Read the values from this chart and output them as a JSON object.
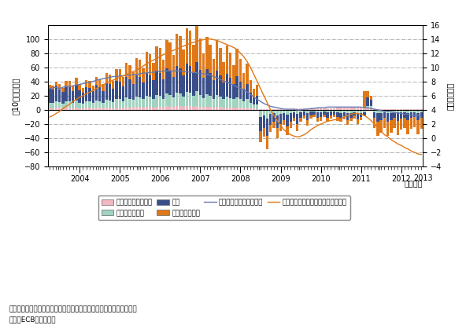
{
  "ylabel_left": "（10億ユーロ）",
  "ylabel_right": "（年率、％）",
  "xlabel_right": "（年月）",
  "ylim_left": [
    -80,
    120
  ],
  "ylim_right": [
    -4,
    16
  ],
  "yticks_left": [
    -80,
    -60,
    -40,
    -20,
    0,
    20,
    40,
    60,
    80,
    100
  ],
  "yticks_right": [
    -4,
    -2,
    0,
    2,
    4,
    6,
    8,
    10,
    12,
    14,
    16
  ],
  "note1": "備考：棒グラフは純取引額。折れ線は残高の前年比。季節調整済み。",
  "note2": "資料：ECBから作成。",
  "bar_colors": {
    "insurance": "#f2b8c0",
    "other_fin": "#a0d4c0",
    "household": "#3a4f8a",
    "corporate": "#e07818"
  },
  "line_colors": {
    "household_rate": "#6878b0",
    "corporate_rate": "#e07818"
  },
  "legend_labels": {
    "insurance": "保険会社・年金基金",
    "other_fin": "その他金融機関",
    "household": "家計",
    "corporate": "企業（非金融）",
    "household_rate": "家計（残高年率）：右軸",
    "corporate_rate": "企業（非金融）（残高年率）：右軸"
  },
  "insurance": [
    2,
    2,
    3,
    3,
    2,
    3,
    3,
    2,
    3,
    2,
    2,
    3,
    3,
    2,
    3,
    3,
    2,
    3,
    3,
    2,
    3,
    3,
    2,
    4,
    3,
    3,
    4,
    4,
    3,
    4,
    4,
    3,
    4,
    4,
    3,
    5,
    4,
    4,
    5,
    5,
    4,
    5,
    5,
    4,
    5,
    4,
    3,
    4,
    4,
    3,
    4,
    4,
    3,
    3,
    3,
    3,
    3,
    3,
    2,
    3,
    2,
    2,
    1,
    1,
    1,
    1,
    1,
    1,
    1,
    1,
    1,
    1,
    1,
    2,
    2,
    2,
    2,
    2,
    2,
    2,
    2,
    2,
    2,
    2,
    2,
    2,
    3,
    3,
    3,
    3,
    3,
    3,
    3,
    3,
    3,
    2,
    2,
    1,
    1,
    1,
    1,
    1,
    1,
    1,
    1,
    1,
    1,
    1,
    1,
    1,
    1,
    1
  ],
  "other_fin": [
    8,
    8,
    9,
    8,
    7,
    9,
    9,
    8,
    10,
    8,
    7,
    9,
    9,
    8,
    10,
    9,
    8,
    11,
    10,
    9,
    12,
    12,
    10,
    14,
    13,
    11,
    15,
    14,
    12,
    16,
    15,
    13,
    17,
    16,
    13,
    18,
    17,
    14,
    19,
    18,
    15,
    20,
    19,
    16,
    21,
    17,
    14,
    18,
    16,
    13,
    17,
    15,
    12,
    16,
    14,
    12,
    15,
    13,
    10,
    12,
    8,
    6,
    7,
    -10,
    -8,
    -12,
    -6,
    -5,
    -8,
    -6,
    -4,
    -7,
    -5,
    -3,
    -6,
    -3,
    -2,
    -4,
    -2,
    -2,
    -3,
    -3,
    -2,
    -3,
    -2,
    -2,
    -3,
    -4,
    -3,
    -5,
    -4,
    -3,
    -5,
    -4,
    -3,
    4,
    3,
    -3,
    -5,
    -4,
    -3,
    -5,
    -4,
    -3,
    -4,
    -3,
    -3,
    -4,
    -3,
    -3,
    -4,
    -3
  ],
  "household": [
    20,
    19,
    22,
    18,
    16,
    21,
    20,
    17,
    22,
    18,
    15,
    20,
    19,
    16,
    22,
    20,
    17,
    24,
    23,
    19,
    26,
    25,
    21,
    28,
    27,
    23,
    30,
    28,
    24,
    32,
    30,
    26,
    34,
    32,
    27,
    36,
    34,
    28,
    38,
    36,
    30,
    40,
    38,
    32,
    42,
    35,
    28,
    36,
    32,
    26,
    34,
    30,
    24,
    32,
    28,
    22,
    30,
    24,
    18,
    22,
    14,
    10,
    12,
    -20,
    -18,
    -25,
    -15,
    -12,
    -18,
    -14,
    -10,
    -16,
    -12,
    -8,
    -14,
    -8,
    -6,
    -10,
    -6,
    -5,
    -8,
    -7,
    -5,
    -8,
    -6,
    -5,
    -7,
    -8,
    -6,
    -9,
    -7,
    -5,
    -8,
    -6,
    -5,
    12,
    9,
    -8,
    -12,
    -10,
    -8,
    -12,
    -10,
    -8,
    -11,
    -9,
    -8,
    -10,
    -8,
    -7,
    -10,
    -8
  ],
  "corporate": [
    5,
    5,
    6,
    7,
    6,
    8,
    9,
    7,
    10,
    9,
    7,
    10,
    10,
    8,
    12,
    11,
    9,
    14,
    14,
    11,
    17,
    17,
    13,
    20,
    20,
    16,
    24,
    25,
    20,
    30,
    30,
    24,
    35,
    35,
    28,
    40,
    40,
    32,
    45,
    45,
    36,
    50,
    50,
    40,
    55,
    45,
    35,
    45,
    40,
    30,
    42,
    38,
    28,
    40,
    36,
    26,
    38,
    32,
    22,
    28,
    18,
    12,
    15,
    -15,
    -12,
    -18,
    -10,
    -8,
    -14,
    -10,
    -7,
    -12,
    -9,
    -5,
    -10,
    -6,
    -4,
    -8,
    -4,
    -3,
    -6,
    -5,
    -3,
    -6,
    -4,
    -3,
    -5,
    -5,
    -4,
    -7,
    -5,
    -4,
    -7,
    -4,
    24,
    8,
    6,
    -15,
    -20,
    -18,
    -14,
    -20,
    -18,
    -14,
    -20,
    -16,
    -14,
    -20,
    -16,
    -14,
    -20,
    -16
  ],
  "household_rate": [
    7.0,
    7.1,
    7.2,
    7.0,
    7.2,
    7.3,
    7.3,
    7.4,
    7.5,
    7.6,
    7.7,
    7.8,
    7.9,
    8.0,
    8.2,
    8.3,
    8.4,
    8.5,
    8.6,
    8.7,
    8.7,
    8.8,
    8.8,
    8.9,
    8.9,
    9.0,
    9.0,
    9.1,
    9.2,
    9.2,
    9.3,
    9.3,
    9.4,
    9.4,
    9.5,
    9.5,
    9.5,
    9.5,
    9.5,
    9.5,
    9.4,
    9.4,
    9.3,
    9.3,
    9.2,
    9.1,
    9.1,
    9.0,
    8.9,
    8.7,
    8.5,
    8.3,
    8.1,
    7.9,
    7.7,
    7.5,
    7.2,
    7.0,
    6.8,
    6.5,
    6.2,
    5.8,
    5.5,
    5.2,
    4.9,
    4.7,
    4.5,
    4.4,
    4.3,
    4.2,
    4.1,
    4.1,
    4.1,
    4.1,
    4.0,
    4.0,
    4.1,
    4.1,
    4.2,
    4.2,
    4.3,
    4.3,
    4.3,
    4.4,
    4.4,
    4.4,
    4.4,
    4.4,
    4.4,
    4.4,
    4.4,
    4.4,
    4.4,
    4.4,
    4.3,
    4.3,
    4.2,
    4.1,
    4.0,
    3.9,
    3.8,
    3.8,
    3.7,
    3.6,
    3.6,
    3.5,
    3.4,
    3.4,
    3.3,
    3.2,
    3.2,
    3.1
  ],
  "corporate_rate": [
    3.0,
    3.2,
    3.5,
    3.8,
    4.2,
    4.5,
    4.8,
    5.2,
    5.5,
    5.8,
    6.0,
    6.3,
    6.5,
    6.7,
    7.0,
    7.3,
    7.5,
    7.8,
    8.0,
    8.2,
    8.4,
    8.6,
    8.8,
    9.0,
    9.2,
    9.4,
    9.6,
    9.9,
    10.2,
    10.5,
    10.8,
    11.0,
    11.3,
    11.5,
    11.8,
    12.0,
    12.2,
    12.4,
    12.6,
    12.8,
    13.0,
    13.2,
    13.4,
    13.5,
    13.7,
    13.8,
    13.9,
    14.0,
    14.0,
    13.9,
    13.8,
    13.6,
    13.4,
    13.2,
    13.0,
    12.8,
    12.5,
    12.0,
    11.5,
    10.8,
    10.0,
    9.0,
    8.0,
    7.0,
    6.0,
    5.0,
    4.0,
    3.2,
    2.5,
    1.8,
    1.2,
    0.8,
    0.5,
    0.3,
    0.2,
    0.3,
    0.5,
    0.8,
    1.2,
    1.5,
    1.8,
    2.0,
    2.2,
    2.4,
    2.5,
    2.6,
    2.7,
    2.8,
    3.0,
    3.2,
    3.4,
    3.5,
    3.5,
    3.4,
    3.2,
    2.9,
    2.5,
    2.0,
    1.5,
    1.0,
    0.5,
    0.2,
    -0.2,
    -0.5,
    -0.8,
    -1.0,
    -1.3,
    -1.5,
    -1.8,
    -2.0,
    -2.2,
    -2.3
  ]
}
